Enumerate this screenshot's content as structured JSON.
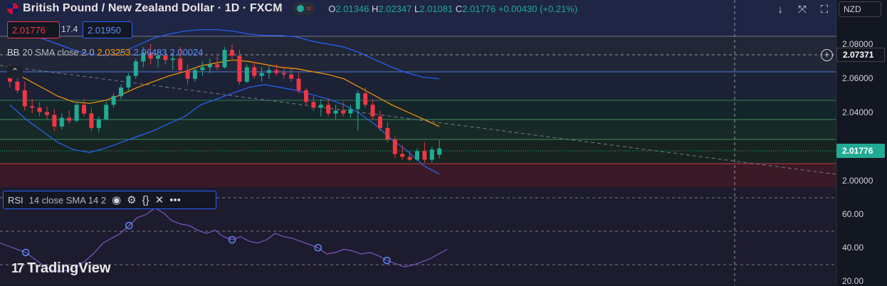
{
  "header": {
    "symbol_title": "British Pound / New Zealand Dollar · 1D · FXCM",
    "ohlc": {
      "o_label": "O",
      "o": "2.01346",
      "h_label": "H",
      "h": "2.02347",
      "l_label": "L",
      "l": "2.01081",
      "c_label": "C",
      "c": "2.01776",
      "change": "+0.00430 (+0.21%)"
    }
  },
  "trade": {
    "sell_price": "2.01776",
    "spread": "17.4",
    "buy_price": "2.01950"
  },
  "indicators": {
    "bb": {
      "label": "BB",
      "params": "20 SMA close 2 0",
      "basis": "2.03253",
      "upper": "2.06483",
      "lower": "2.00024"
    },
    "rsi": {
      "label": "RSI",
      "params": "14 close SMA 14 2"
    }
  },
  "toolbar": {
    "currency": "NZD"
  },
  "price_axis": {
    "ticks": [
      "2.08000",
      "2.06000",
      "2.04000",
      "2.00000"
    ],
    "crosshair_price": "2.07371",
    "last_price": "2.01776"
  },
  "rsi_axis": {
    "ticks": [
      "60.00",
      "40.00",
      "20.00"
    ]
  },
  "branding": {
    "logo_text": "TradingView"
  },
  "colors": {
    "up": "#22ab94",
    "down": "#f23645",
    "bb_basis": "#ff9800",
    "bb_band": "#2962ff",
    "rsi_line": "#7e57c2"
  },
  "chart_data": {
    "type": "candlestick",
    "ohlc_candles": [
      [
        2.072,
        2.076,
        2.06,
        2.064
      ],
      [
        2.064,
        2.07,
        2.056,
        2.058
      ],
      [
        2.058,
        2.064,
        2.044,
        2.047
      ],
      [
        2.047,
        2.052,
        2.042,
        2.046
      ],
      [
        2.046,
        2.05,
        2.04,
        2.043
      ],
      [
        2.043,
        2.047,
        2.038,
        2.041
      ],
      [
        2.041,
        2.045,
        2.03,
        2.033
      ],
      [
        2.033,
        2.042,
        2.031,
        2.039
      ],
      [
        2.039,
        2.044,
        2.035,
        2.037
      ],
      [
        2.037,
        2.05,
        2.036,
        2.048
      ],
      [
        2.048,
        2.052,
        2.04,
        2.042
      ],
      [
        2.042,
        2.046,
        2.03,
        2.032
      ],
      [
        2.032,
        2.04,
        2.029,
        2.038
      ],
      [
        2.038,
        2.05,
        2.037,
        2.048
      ],
      [
        2.048,
        2.056,
        2.046,
        2.054
      ],
      [
        2.054,
        2.062,
        2.052,
        2.06
      ],
      [
        2.06,
        2.07,
        2.058,
        2.068
      ],
      [
        2.068,
        2.08,
        2.066,
        2.078
      ],
      [
        2.078,
        2.088,
        2.074,
        2.084
      ],
      [
        2.084,
        2.09,
        2.076,
        2.08
      ],
      [
        2.08,
        2.086,
        2.074,
        2.082
      ],
      [
        2.082,
        2.086,
        2.076,
        2.079
      ],
      [
        2.079,
        2.084,
        2.072,
        2.08
      ],
      [
        2.08,
        2.088,
        2.07,
        2.072
      ],
      [
        2.072,
        2.076,
        2.062,
        2.066
      ],
      [
        2.066,
        2.074,
        2.064,
        2.072
      ],
      [
        2.072,
        2.078,
        2.068,
        2.074
      ],
      [
        2.074,
        2.08,
        2.07,
        2.076
      ],
      [
        2.076,
        2.082,
        2.072,
        2.074
      ],
      [
        2.074,
        2.088,
        2.073,
        2.086
      ],
      [
        2.086,
        2.09,
        2.08,
        2.082
      ],
      [
        2.082,
        2.086,
        2.062,
        2.064
      ],
      [
        2.064,
        2.076,
        2.063,
        2.074
      ],
      [
        2.074,
        2.078,
        2.066,
        2.068
      ],
      [
        2.068,
        2.074,
        2.064,
        2.07
      ],
      [
        2.07,
        2.075,
        2.066,
        2.072
      ],
      [
        2.072,
        2.076,
        2.068,
        2.07
      ],
      [
        2.07,
        2.074,
        2.066,
        2.069
      ],
      [
        2.069,
        2.073,
        2.064,
        2.066
      ],
      [
        2.066,
        2.07,
        2.056,
        2.058
      ],
      [
        2.058,
        2.06,
        2.048,
        2.05
      ],
      [
        2.05,
        2.054,
        2.044,
        2.046
      ],
      [
        2.046,
        2.052,
        2.04,
        2.048
      ],
      [
        2.048,
        2.052,
        2.04,
        2.042
      ],
      [
        2.042,
        2.048,
        2.038,
        2.044
      ],
      [
        2.044,
        2.05,
        2.04,
        2.042
      ],
      [
        2.042,
        2.048,
        2.039,
        2.045
      ],
      [
        2.045,
        2.058,
        2.03,
        2.056
      ],
      [
        2.056,
        2.06,
        2.046,
        2.048
      ],
      [
        2.048,
        2.052,
        2.038,
        2.04
      ],
      [
        2.04,
        2.044,
        2.03,
        2.032
      ],
      [
        2.032,
        2.036,
        2.022,
        2.024
      ],
      [
        2.024,
        2.026,
        2.011,
        2.014
      ],
      [
        2.014,
        2.02,
        2.01,
        2.012
      ],
      [
        2.012,
        2.016,
        2.009,
        2.01
      ],
      [
        2.01,
        2.018,
        2.009,
        2.016
      ],
      [
        2.016,
        2.022,
        2.008,
        2.01
      ],
      [
        2.01,
        2.019,
        2.008,
        2.017
      ],
      [
        2.0135,
        2.0235,
        2.0108,
        2.0178
      ]
    ],
    "ylim": [
      1.995,
      2.09
    ],
    "bb_upper": [
      2.106,
      2.1,
      2.094,
      2.09,
      2.086,
      2.083,
      2.082,
      2.084,
      2.089,
      2.094,
      2.097,
      2.099,
      2.1,
      2.1,
      2.099,
      2.097,
      2.096,
      2.096,
      2.095,
      2.092,
      2.09,
      2.088,
      2.084,
      2.079,
      2.074,
      2.07,
      2.067,
      2.066
    ],
    "bb_basis": [
      2.072,
      2.066,
      2.06,
      2.054,
      2.05,
      2.049,
      2.051,
      2.055,
      2.06,
      2.064,
      2.068,
      2.071,
      2.075,
      2.077,
      2.079,
      2.078,
      2.076,
      2.074,
      2.073,
      2.071,
      2.069,
      2.066,
      2.06,
      2.054,
      2.048,
      2.043,
      2.038,
      2.033
    ],
    "bb_lower": [
      2.048,
      2.038,
      2.03,
      2.022,
      2.017,
      2.015,
      2.018,
      2.022,
      2.026,
      2.03,
      2.035,
      2.04,
      2.048,
      2.052,
      2.056,
      2.06,
      2.062,
      2.06,
      2.058,
      2.055,
      2.052,
      2.048,
      2.042,
      2.034,
      2.024,
      2.016,
      2.006,
      2.0
    ],
    "rsi": [
      44,
      42,
      40,
      38,
      34,
      30,
      27,
      26,
      27,
      29,
      33,
      38,
      44,
      47,
      50,
      55,
      60,
      62,
      66,
      63,
      58,
      56,
      55,
      52,
      50,
      52,
      48,
      46,
      48,
      45,
      44,
      46,
      50,
      48,
      47,
      45,
      43,
      41,
      37,
      38,
      40,
      39,
      37,
      38,
      36,
      33,
      31,
      29,
      30,
      32,
      34,
      37,
      40
    ],
    "rsi_ylim": [
      20,
      68
    ]
  }
}
